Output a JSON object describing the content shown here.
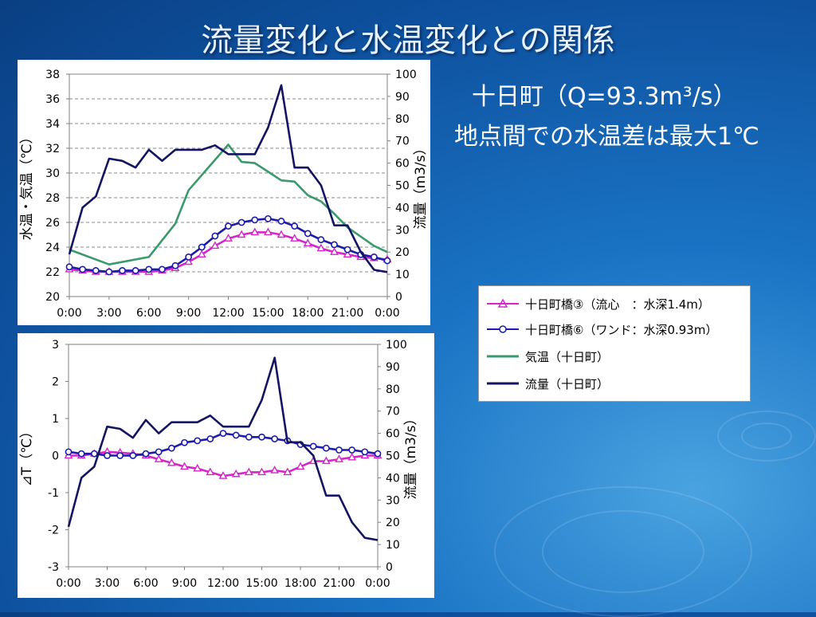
{
  "title": "流量変化と水温変化との関係",
  "subtitle_line1": "十日町（Q=93.3m³/s）",
  "subtitle_line2": "地点間での水温差は最大1℃",
  "colors": {
    "series_a": "#d526c8",
    "series_b": "#1c1ca8",
    "air_temp": "#3a9a6c",
    "flow": "#141464"
  },
  "legend": {
    "items": [
      {
        "label": "十日町橋③（流心　：水深1.4m）"
      },
      {
        "label": "十日町橋⑥（ワンド：水深0.93m）"
      },
      {
        "label": "気温（十日町）"
      },
      {
        "label": "流量（十日町）"
      }
    ]
  },
  "chart_data": [
    {
      "type": "line",
      "title": "",
      "xlabel": "",
      "ylabel": "水温・気温（℃）",
      "y2label": "流量（m3/s）",
      "x_ticks": [
        "0:00",
        "3:00",
        "6:00",
        "9:00",
        "12:00",
        "15:00",
        "18:00",
        "21:00",
        "0:00"
      ],
      "ylim": [
        20,
        38
      ],
      "y_ticks": [
        20,
        22,
        24,
        26,
        28,
        30,
        32,
        34,
        36,
        38
      ],
      "y2lim": [
        0,
        100
      ],
      "y2_ticks": [
        0,
        10,
        20,
        30,
        40,
        50,
        60,
        70,
        80,
        90,
        100
      ],
      "grid": true,
      "series": [
        {
          "name": "十日町橋③（流心　：水深1.4m）",
          "axis": "left",
          "marker": "triangle",
          "color": "#d526c8",
          "x": [
            0,
            1,
            2,
            3,
            4,
            5,
            6,
            7,
            8,
            9,
            10,
            11,
            12,
            13,
            14,
            15,
            16,
            17,
            18,
            19,
            20,
            21,
            22,
            23,
            24
          ],
          "y": [
            22.2,
            22.1,
            22.0,
            22.0,
            22.0,
            22.0,
            22.0,
            22.1,
            22.3,
            22.8,
            23.4,
            24.1,
            24.7,
            25.0,
            25.2,
            25.2,
            25.0,
            24.7,
            24.3,
            23.9,
            23.6,
            23.4,
            23.2,
            23.1,
            23.0
          ]
        },
        {
          "name": "十日町橋⑥（ワンド：水深0.93m）",
          "axis": "left",
          "marker": "circle",
          "color": "#1c1ca8",
          "x": [
            0,
            1,
            2,
            3,
            4,
            5,
            6,
            7,
            8,
            9,
            10,
            11,
            12,
            13,
            14,
            15,
            16,
            17,
            18,
            19,
            20,
            21,
            22,
            23,
            24
          ],
          "y": [
            22.4,
            22.2,
            22.1,
            22.0,
            22.1,
            22.1,
            22.2,
            22.2,
            22.5,
            23.2,
            24.0,
            24.9,
            25.7,
            26.0,
            26.2,
            26.3,
            26.1,
            25.7,
            25.1,
            24.6,
            24.2,
            23.8,
            23.4,
            23.2,
            22.9
          ]
        },
        {
          "name": "気温（十日町）",
          "axis": "left",
          "marker": "none",
          "color": "#3a9a6c",
          "x": [
            0,
            3,
            6,
            8,
            9,
            12,
            13,
            14,
            15,
            16,
            17,
            18,
            19,
            20,
            21,
            23,
            24
          ],
          "y": [
            23.8,
            22.6,
            23.2,
            25.9,
            28.6,
            32.3,
            30.9,
            30.8,
            30.1,
            29.4,
            29.3,
            28.2,
            27.7,
            26.7,
            25.6,
            24.1,
            23.6
          ]
        },
        {
          "name": "流量（十日町）",
          "axis": "right",
          "marker": "none",
          "color": "#141464",
          "x": [
            0,
            1,
            2,
            3,
            4,
            5,
            6,
            7,
            8,
            9,
            10,
            11,
            12,
            13,
            14,
            15,
            16,
            17,
            18,
            19,
            20,
            21,
            22,
            23,
            24
          ],
          "y": [
            19,
            40,
            45,
            62,
            61,
            58,
            66,
            61,
            66,
            66,
            66,
            68,
            64,
            64,
            64,
            76,
            95,
            58,
            58,
            50,
            32,
            32,
            20,
            12,
            11
          ]
        }
      ]
    },
    {
      "type": "line",
      "title": "",
      "xlabel": "",
      "ylabel": "⊿T（℃）",
      "y2label": "流量（m3/s）",
      "x_ticks": [
        "0:00",
        "3:00",
        "6:00",
        "9:00",
        "12:00",
        "15:00",
        "18:00",
        "21:00",
        "0:00"
      ],
      "ylim": [
        -3,
        3
      ],
      "y_ticks": [
        -3,
        -2,
        -1,
        0,
        1,
        2,
        3
      ],
      "y2lim": [
        0,
        100
      ],
      "y2_ticks": [
        0,
        10,
        20,
        30,
        40,
        50,
        60,
        70,
        80,
        90,
        100
      ],
      "grid": false,
      "series": [
        {
          "name": "十日町橋③（流心　：水深1.4m）",
          "axis": "left",
          "marker": "triangle",
          "color": "#d526c8",
          "x": [
            0,
            1,
            2,
            3,
            4,
            5,
            6,
            7,
            8,
            9,
            10,
            11,
            12,
            13,
            14,
            15,
            16,
            17,
            18,
            19,
            20,
            21,
            22,
            23,
            24
          ],
          "y": [
            0.0,
            0.0,
            0.05,
            0.1,
            0.08,
            0.05,
            0.0,
            -0.1,
            -0.2,
            -0.3,
            -0.35,
            -0.45,
            -0.55,
            -0.5,
            -0.45,
            -0.45,
            -0.4,
            -0.45,
            -0.3,
            -0.15,
            -0.15,
            -0.1,
            -0.05,
            0.0,
            0.0
          ]
        },
        {
          "name": "十日町橋⑥（ワンド：水深0.93m）",
          "axis": "left",
          "marker": "circle",
          "color": "#1c1ca8",
          "x": [
            0,
            1,
            2,
            3,
            4,
            5,
            6,
            7,
            8,
            9,
            10,
            11,
            12,
            13,
            14,
            15,
            16,
            17,
            18,
            19,
            20,
            21,
            22,
            23,
            24
          ],
          "y": [
            0.1,
            0.05,
            0.05,
            0.0,
            0.0,
            0.0,
            0.05,
            0.1,
            0.2,
            0.35,
            0.4,
            0.45,
            0.6,
            0.55,
            0.5,
            0.5,
            0.45,
            0.4,
            0.3,
            0.25,
            0.2,
            0.15,
            0.15,
            0.1,
            0.05
          ]
        },
        {
          "name": "流量（十日町）",
          "axis": "right",
          "marker": "none",
          "color": "#141464",
          "x": [
            0,
            1,
            2,
            3,
            4,
            5,
            6,
            7,
            8,
            9,
            10,
            11,
            12,
            13,
            14,
            15,
            16,
            17,
            18,
            19,
            20,
            21,
            22,
            23,
            24
          ],
          "y": [
            18,
            40,
            45,
            63,
            62,
            58,
            66,
            60,
            65,
            65,
            65,
            68,
            63,
            63,
            63,
            75,
            94,
            56,
            56,
            50,
            32,
            32,
            20,
            13,
            12
          ]
        }
      ]
    }
  ]
}
